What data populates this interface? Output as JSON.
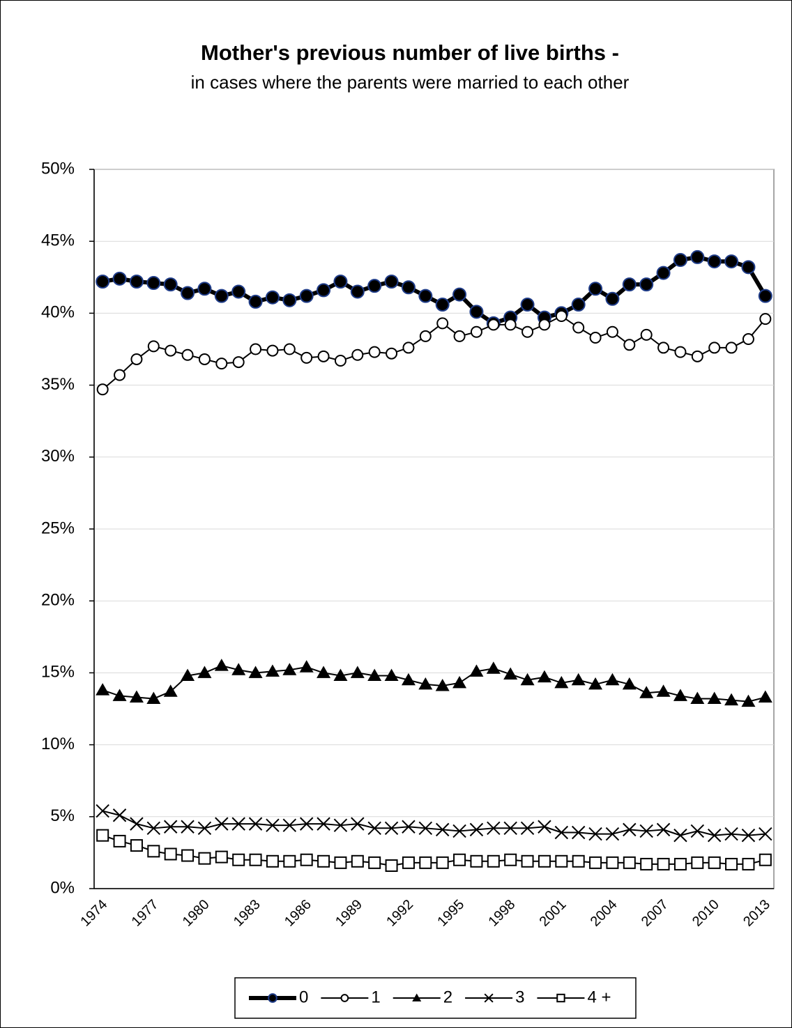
{
  "chart_data": {
    "type": "line",
    "title": "Mother's previous number of live births -",
    "subtitle": "in cases where the parents were married to each other",
    "categories": [
      "1974",
      null,
      null,
      "1977",
      null,
      null,
      "1980",
      null,
      null,
      "1983",
      null,
      null,
      "1986",
      null,
      null,
      "1989",
      null,
      null,
      "1992",
      null,
      null,
      "1995",
      null,
      null,
      "1998",
      null,
      null,
      "2001",
      null,
      null,
      "2004",
      null,
      null,
      "2007",
      null,
      null,
      "2010",
      null,
      null,
      "2013"
    ],
    "ylim": [
      0,
      50
    ],
    "yticks": [
      {
        "value": 0,
        "label": "0%"
      },
      {
        "value": 5,
        "label": "5%"
      },
      {
        "value": 10,
        "label": "10%"
      },
      {
        "value": 15,
        "label": "15%"
      },
      {
        "value": 20,
        "label": "20%"
      },
      {
        "value": 25,
        "label": "25%"
      },
      {
        "value": 30,
        "label": "30%"
      },
      {
        "value": 35,
        "label": "35%"
      },
      {
        "value": 40,
        "label": "40%"
      },
      {
        "value": 45,
        "label": "45%"
      },
      {
        "value": 50,
        "label": "50%"
      }
    ],
    "grid": true,
    "legend": "bottom",
    "series": [
      {
        "name": "0",
        "color": "#000000",
        "marker": "circle-filled",
        "marker_edge_color": "#1f3c88",
        "line_width": 6,
        "values": [
          42.2,
          42.4,
          42.2,
          42.1,
          42.0,
          41.4,
          41.7,
          41.2,
          41.5,
          40.8,
          41.1,
          40.9,
          41.2,
          41.6,
          42.2,
          41.5,
          41.9,
          42.2,
          41.8,
          41.2,
          40.6,
          41.3,
          40.1,
          39.3,
          39.7,
          40.6,
          39.7,
          40.0,
          40.6,
          41.7,
          41.0,
          42.0,
          42.0,
          42.8,
          43.7,
          43.9,
          43.6,
          43.6,
          43.2,
          41.2
        ]
      },
      {
        "name": "1",
        "color": "#000000",
        "marker": "circle-open",
        "line_width": 2,
        "values": [
          34.7,
          35.7,
          36.8,
          37.7,
          37.4,
          37.1,
          36.8,
          36.5,
          36.6,
          37.5,
          37.4,
          37.5,
          36.9,
          37.0,
          36.7,
          37.1,
          37.3,
          37.2,
          37.6,
          38.4,
          39.3,
          38.4,
          38.7,
          39.2,
          39.2,
          38.7,
          39.2,
          39.8,
          39.0,
          38.3,
          38.7,
          37.8,
          38.5,
          37.6,
          37.3,
          37.0,
          37.6,
          37.6,
          38.2,
          39.6
        ]
      },
      {
        "name": "2",
        "color": "#000000",
        "marker": "triangle",
        "line_width": 2,
        "values": [
          13.8,
          13.4,
          13.3,
          13.2,
          13.7,
          14.8,
          15.0,
          15.5,
          15.2,
          15.0,
          15.1,
          15.2,
          15.4,
          15.0,
          14.8,
          15.0,
          14.8,
          14.8,
          14.5,
          14.2,
          14.1,
          14.3,
          15.1,
          15.3,
          14.9,
          14.5,
          14.7,
          14.3,
          14.5,
          14.2,
          14.5,
          14.2,
          13.6,
          13.7,
          13.4,
          13.2,
          13.2,
          13.1,
          13.0,
          13.3
        ]
      },
      {
        "name": "3",
        "color": "#000000",
        "marker": "x",
        "line_width": 2,
        "values": [
          5.4,
          5.1,
          4.5,
          4.2,
          4.3,
          4.3,
          4.2,
          4.5,
          4.5,
          4.5,
          4.4,
          4.4,
          4.5,
          4.5,
          4.4,
          4.5,
          4.2,
          4.2,
          4.3,
          4.2,
          4.1,
          4.0,
          4.1,
          4.2,
          4.2,
          4.2,
          4.3,
          3.9,
          3.9,
          3.8,
          3.8,
          4.1,
          4.0,
          4.1,
          3.7,
          4.0,
          3.7,
          3.8,
          3.7,
          3.8
        ]
      },
      {
        "name": "4 +",
        "color": "#000000",
        "marker": "square-open",
        "line_width": 2,
        "values": [
          3.7,
          3.3,
          3.0,
          2.6,
          2.4,
          2.3,
          2.1,
          2.2,
          2.0,
          2.0,
          1.9,
          1.9,
          2.0,
          1.9,
          1.8,
          1.9,
          1.8,
          1.6,
          1.8,
          1.8,
          1.8,
          2.0,
          1.9,
          1.9,
          2.0,
          1.9,
          1.9,
          1.9,
          1.9,
          1.8,
          1.8,
          1.8,
          1.7,
          1.7,
          1.7,
          1.8,
          1.8,
          1.7,
          1.7,
          2.0
        ]
      }
    ]
  }
}
